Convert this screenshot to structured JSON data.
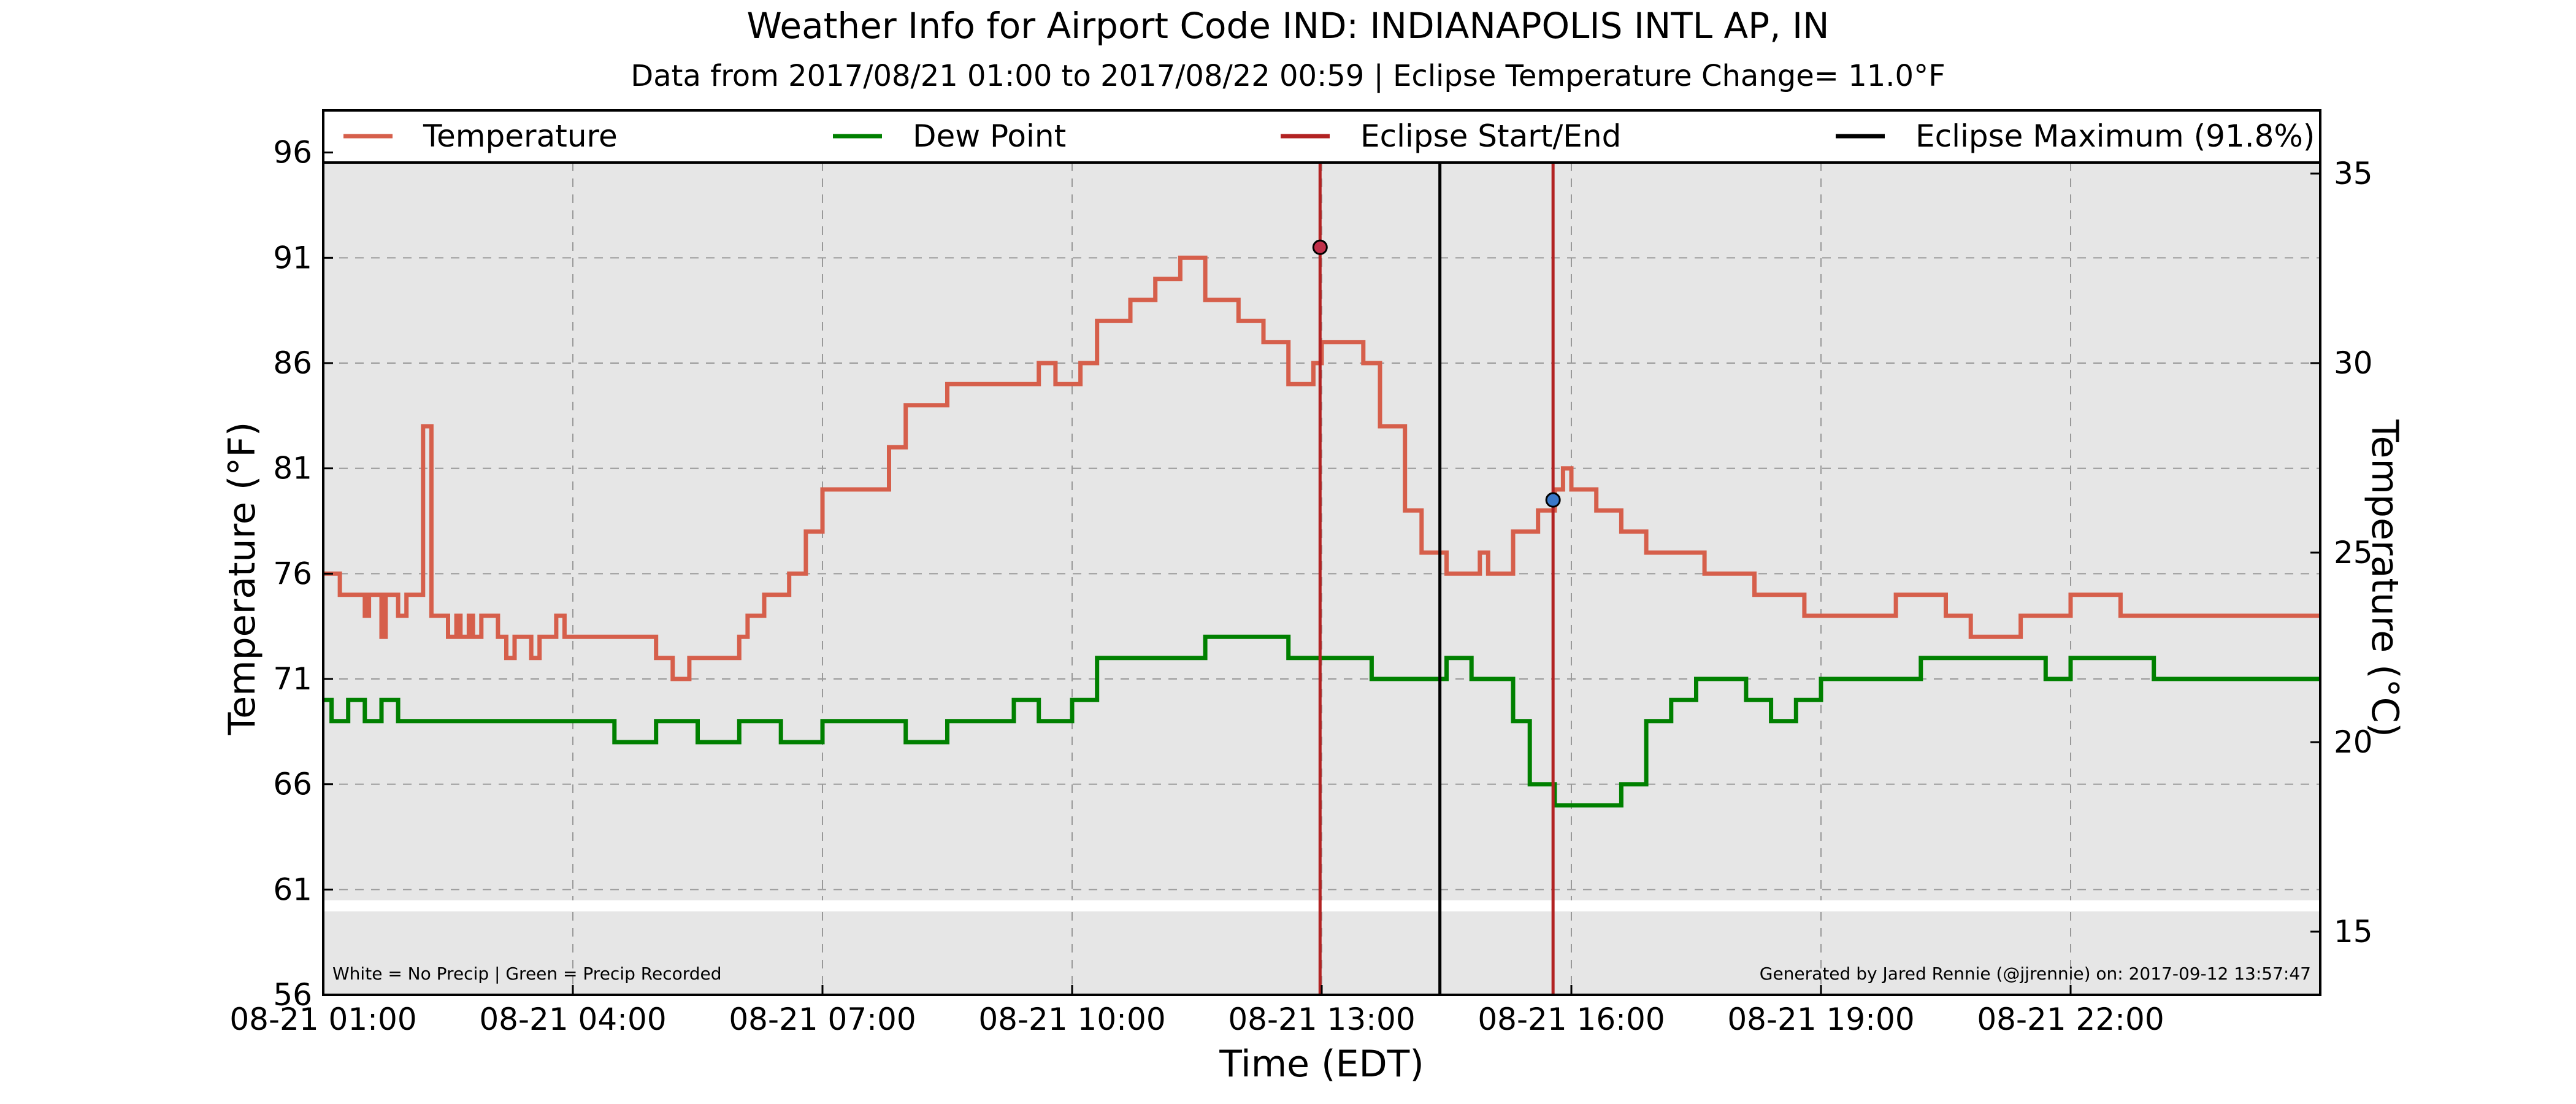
{
  "chart_data": {
    "type": "line",
    "title": "Weather Info for Airport Code IND: INDIANAPOLIS INTL AP, IN",
    "subtitle": "Data from 2017/08/21 01:00 to 2017/08/22 00:59 | Eclipse Temperature Change= 11.0°F",
    "xlabel": "Time (EDT)",
    "ylabel": "Temperature (°F)",
    "ylabel_right": "Temperature (°C)",
    "x_unit": "hours of 2017-08-21 (EDT)",
    "xlim": [
      1.0,
      25.0
    ],
    "ylim": [
      56,
      98
    ],
    "ylim_right_c": [
      13.33,
      36.67
    ],
    "grid": true,
    "legend_placement": "top",
    "x_ticks": [
      {
        "x": 1,
        "label": "08-21 01:00"
      },
      {
        "x": 4,
        "label": "08-21 04:00"
      },
      {
        "x": 7,
        "label": "08-21 07:00"
      },
      {
        "x": 10,
        "label": "08-21 10:00"
      },
      {
        "x": 13,
        "label": "08-21 13:00"
      },
      {
        "x": 16,
        "label": "08-21 16:00"
      },
      {
        "x": 19,
        "label": "08-21 19:00"
      },
      {
        "x": 22,
        "label": "08-21 22:00"
      }
    ],
    "y_ticks": [
      56,
      61,
      66,
      71,
      76,
      81,
      86,
      91,
      96
    ],
    "y_ticks_right": [
      15,
      20,
      25,
      30,
      35
    ],
    "series": [
      {
        "name": "Temperature",
        "color": "#d65f4b",
        "x": [
          1.0,
          1.15,
          1.2,
          1.5,
          1.55,
          1.7,
          1.75,
          1.9,
          2.0,
          2.2,
          2.3,
          2.5,
          2.6,
          2.65,
          2.75,
          2.8,
          2.9,
          3.1,
          3.2,
          3.3,
          3.5,
          3.6,
          3.8,
          3.9,
          4.5,
          5.0,
          5.2,
          5.4,
          5.6,
          5.8,
          6.0,
          6.1,
          6.3,
          6.6,
          6.8,
          7.0,
          7.5,
          7.8,
          8.0,
          8.5,
          9.0,
          9.3,
          9.6,
          9.8,
          10.1,
          10.3,
          10.7,
          11.0,
          11.3,
          11.6,
          11.9,
          12.0,
          12.3,
          12.6,
          12.9,
          13.0,
          13.3,
          13.5,
          13.7,
          14.0,
          14.2,
          14.5,
          14.7,
          14.9,
          15.0,
          15.3,
          15.6,
          15.8,
          15.9,
          16.0,
          16.3,
          16.6,
          16.9,
          17.3,
          17.6,
          17.9,
          18.2,
          18.5,
          18.8,
          19.1,
          19.4,
          19.6,
          19.9,
          20.2,
          20.5,
          20.8,
          21.1,
          21.4,
          21.7,
          22.0,
          22.3,
          22.6,
          22.9,
          23.2,
          23.5,
          23.8,
          24.1,
          24.4,
          24.7,
          25.0
        ],
        "y": [
          76,
          76,
          75,
          74,
          75,
          73,
          75,
          74,
          75,
          83,
          74,
          73,
          74,
          73,
          74,
          73,
          74,
          73,
          72,
          73,
          72,
          73,
          74,
          73,
          73,
          72,
          71,
          72,
          72,
          72,
          73,
          74,
          75,
          76,
          78,
          80,
          80,
          82,
          84,
          85,
          85,
          85,
          86,
          85,
          86,
          88,
          89,
          90,
          91,
          89,
          89,
          88,
          87,
          85,
          86,
          87,
          87,
          86,
          83,
          79,
          77,
          76,
          76,
          77,
          76,
          78,
          79,
          80,
          81,
          80,
          79,
          78,
          77,
          77,
          76,
          76,
          75,
          75,
          74,
          74,
          74,
          74,
          75,
          75,
          74,
          73,
          73,
          74,
          74,
          75,
          75,
          74,
          74,
          74,
          74,
          74,
          74,
          74,
          74,
          74
        ],
        "points_from_image": true
      },
      {
        "name": "Dew Point",
        "color": "#008000",
        "x": [
          1.0,
          1.1,
          1.3,
          1.5,
          1.7,
          1.9,
          2.0,
          2.5,
          3.0,
          4.0,
          4.5,
          5.0,
          5.5,
          6.0,
          6.5,
          7.0,
          7.5,
          8.0,
          8.5,
          9.0,
          9.3,
          9.6,
          10.0,
          10.3,
          10.6,
          11.0,
          11.3,
          11.6,
          12.0,
          12.3,
          12.6,
          13.0,
          13.3,
          13.6,
          13.9,
          14.2,
          14.5,
          14.8,
          15.0,
          15.3,
          15.5,
          15.8,
          16.0,
          16.3,
          16.6,
          16.9,
          17.2,
          17.5,
          17.8,
          18.1,
          18.4,
          18.7,
          19.0,
          19.3,
          19.6,
          19.9,
          20.2,
          20.5,
          20.8,
          21.1,
          21.4,
          21.7,
          22.0,
          22.5,
          23.0,
          23.5,
          24.0,
          24.5,
          25.0
        ],
        "y": [
          70,
          69,
          70,
          69,
          70,
          69,
          69,
          69,
          69,
          69,
          68,
          69,
          68,
          69,
          68,
          69,
          69,
          68,
          69,
          69,
          70,
          69,
          70,
          72,
          72,
          72,
          72,
          73,
          73,
          73,
          72,
          72,
          72,
          71,
          71,
          71,
          72,
          71,
          71,
          69,
          66,
          65,
          65,
          65,
          66,
          69,
          70,
          71,
          71,
          70,
          69,
          70,
          71,
          71,
          71,
          71,
          72,
          72,
          72,
          72,
          72,
          71,
          72,
          72,
          71,
          71,
          71,
          71,
          71
        ],
        "points_from_image": true
      }
    ],
    "eclipse_start": {
      "x": 12.98,
      "label": "Eclipse Start/End",
      "color": "#b22222",
      "temp_f": 91.5
    },
    "eclipse_end": {
      "x": 15.78,
      "label": "Eclipse Start/End",
      "color": "#b22222",
      "temp_f": 79.5
    },
    "eclipse_max": {
      "x": 14.42,
      "label": "Eclipse Maximum (91.8%)",
      "color": "#000000"
    },
    "legend": [
      {
        "label": "Temperature",
        "color": "#d65f4b"
      },
      {
        "label": "Dew Point",
        "color": "#008000"
      },
      {
        "label": "Eclipse Start/End",
        "color": "#b22222"
      },
      {
        "label": "Eclipse Maximum (91.8%)",
        "color": "#000000"
      }
    ],
    "precip_note": "White = No Precip | Green = Precip Recorded",
    "generated_note": "Generated by Jared Rennie (@jjrennie) on: 2017-09-12 13:57:47",
    "background_color": "#e6e6e6"
  }
}
